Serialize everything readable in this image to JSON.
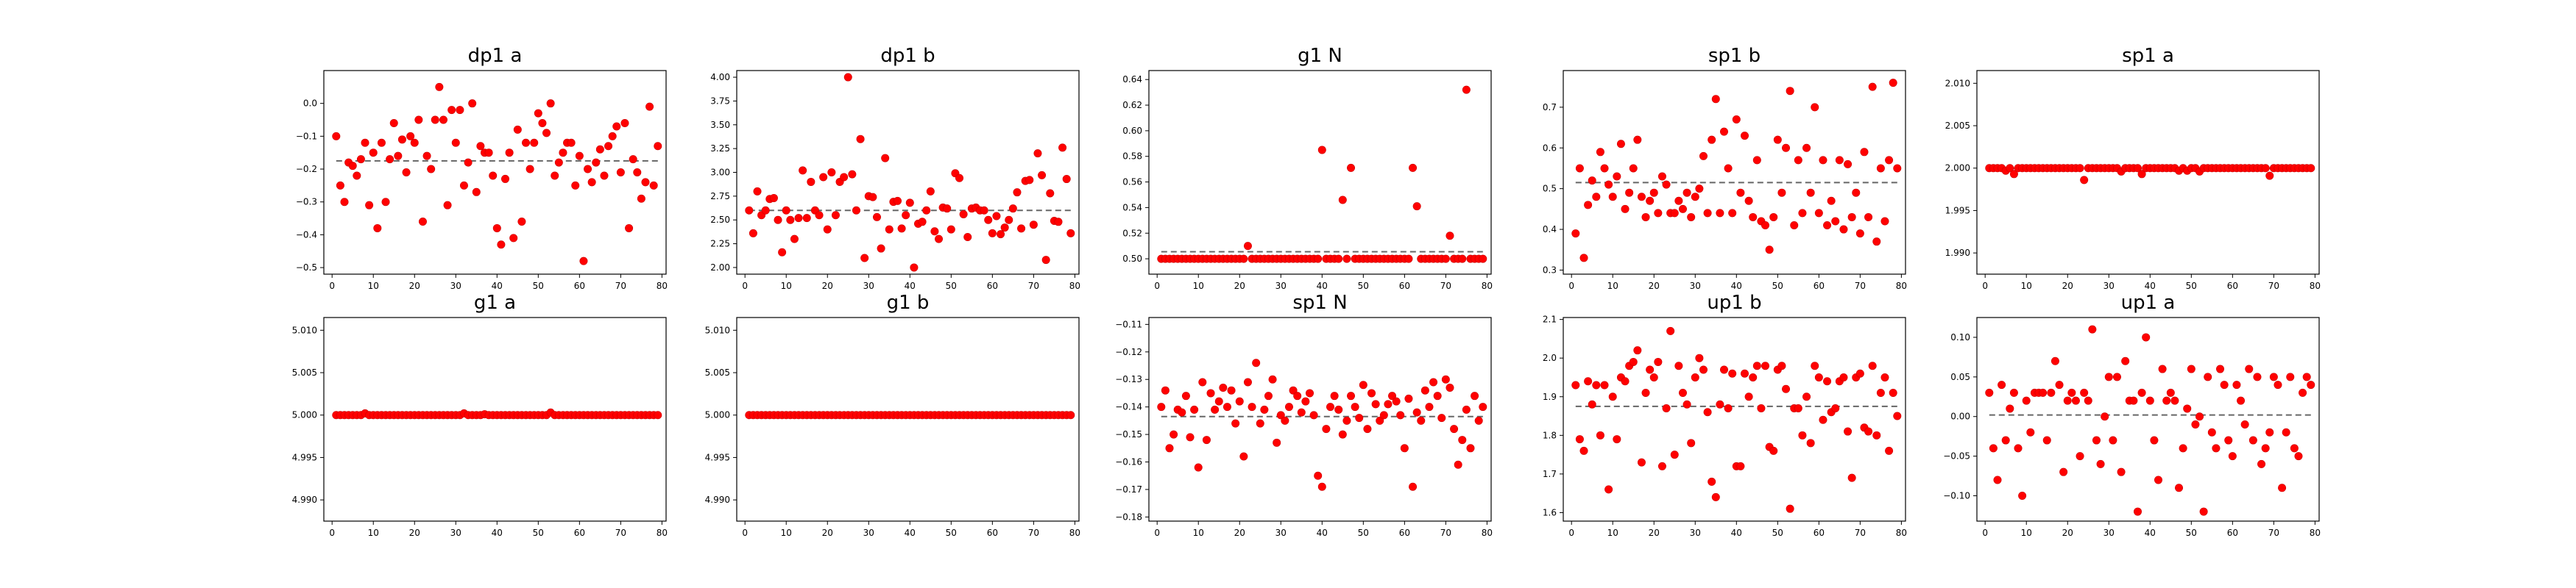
{
  "chart_data": [
    {
      "type": "scatter",
      "title": "dp1 a",
      "ylim": [
        -0.52,
        0.1
      ],
      "yticks": [
        0.0,
        -0.1,
        -0.2,
        -0.3,
        -0.4,
        -0.5
      ],
      "ytick_labels": [
        "0.0",
        "−0.1",
        "−0.2",
        "−0.3",
        "−0.4",
        "−0.5"
      ],
      "mean": -0.175,
      "y": [
        -0.1,
        -0.25,
        -0.3,
        -0.18,
        -0.19,
        -0.22,
        -0.17,
        -0.12,
        -0.31,
        -0.15,
        -0.38,
        -0.12,
        -0.3,
        -0.17,
        -0.06,
        -0.16,
        -0.11,
        -0.21,
        -0.1,
        -0.12,
        -0.05,
        -0.36,
        -0.16,
        -0.2,
        -0.05,
        0.05,
        -0.05,
        -0.31,
        -0.02,
        -0.12,
        -0.02,
        -0.25,
        -0.18,
        0.0,
        -0.27,
        -0.13,
        -0.15,
        -0.15,
        -0.22,
        -0.38,
        -0.43,
        -0.23,
        -0.15,
        -0.41,
        -0.08,
        -0.36,
        -0.12,
        -0.2,
        -0.12,
        -0.03,
        -0.06,
        -0.09,
        0.0,
        -0.22,
        -0.18,
        -0.15,
        -0.12,
        -0.12,
        -0.25,
        -0.16,
        -0.48,
        -0.2,
        -0.24,
        -0.18,
        -0.14,
        -0.22,
        -0.13,
        -0.1,
        -0.07,
        -0.21,
        -0.06,
        -0.38,
        -0.17,
        -0.21,
        -0.29,
        -0.24,
        -0.01,
        -0.25,
        -0.13
      ]
    },
    {
      "type": "scatter",
      "title": "dp1 b",
      "ylim": [
        1.93,
        4.07
      ],
      "yticks": [
        2.0,
        2.25,
        2.5,
        2.75,
        3.0,
        3.25,
        3.5,
        3.75,
        4.0
      ],
      "ytick_labels": [
        "2.00",
        "2.25",
        "2.50",
        "2.75",
        "3.00",
        "3.25",
        "3.50",
        "3.75",
        "4.00"
      ],
      "mean": 2.6,
      "y": [
        2.6,
        2.36,
        2.8,
        2.55,
        2.6,
        2.72,
        2.73,
        2.5,
        2.16,
        2.6,
        2.5,
        2.3,
        2.52,
        3.02,
        2.52,
        2.9,
        2.6,
        2.55,
        2.95,
        2.4,
        3.0,
        2.55,
        2.9,
        2.95,
        4.0,
        2.98,
        2.6,
        3.35,
        2.1,
        2.75,
        2.74,
        2.53,
        2.2,
        3.15,
        2.4,
        2.69,
        2.7,
        2.41,
        2.55,
        2.68,
        2.0,
        2.46,
        2.48,
        2.6,
        2.8,
        2.38,
        2.3,
        2.63,
        2.62,
        2.4,
        2.99,
        2.94,
        2.56,
        2.32,
        2.62,
        2.63,
        2.6,
        2.6,
        2.5,
        2.36,
        2.54,
        2.35,
        2.42,
        2.5,
        2.62,
        2.79,
        2.41,
        2.91,
        2.92,
        2.45,
        3.2,
        2.97,
        2.08,
        2.78,
        2.49,
        2.48,
        3.26,
        2.93,
        2.36
      ]
    },
    {
      "type": "scatter",
      "title": "g1 N",
      "ylim": [
        0.488,
        0.647
      ],
      "yticks": [
        0.5,
        0.52,
        0.54,
        0.56,
        0.58,
        0.6,
        0.62,
        0.64
      ],
      "ytick_labels": [
        "0.50",
        "0.52",
        "0.54",
        "0.56",
        "0.58",
        "0.60",
        "0.62",
        "0.64"
      ],
      "mean": 0.5055,
      "y": [
        0.5,
        0.5,
        0.5,
        0.5,
        0.5,
        0.5,
        0.5,
        0.5,
        0.5,
        0.5,
        0.5,
        0.5,
        0.5,
        0.5,
        0.5,
        0.5,
        0.5,
        0.5,
        0.5,
        0.5,
        0.5,
        0.51,
        0.5,
        0.5,
        0.5,
        0.5,
        0.5,
        0.5,
        0.5,
        0.5,
        0.5,
        0.5,
        0.5,
        0.5,
        0.5,
        0.5,
        0.5,
        0.5,
        0.5,
        0.585,
        0.5,
        0.5,
        0.5,
        0.5,
        0.546,
        0.5,
        0.571,
        0.5,
        0.5,
        0.5,
        0.5,
        0.5,
        0.5,
        0.5,
        0.5,
        0.5,
        0.5,
        0.5,
        0.5,
        0.5,
        0.5,
        0.571,
        0.541,
        0.5,
        0.5,
        0.5,
        0.5,
        0.5,
        0.5,
        0.5,
        0.518,
        0.5,
        0.5,
        0.5,
        0.632,
        0.5,
        0.5,
        0.5,
        0.5
      ]
    },
    {
      "type": "scatter",
      "title": "sp1 b",
      "ylim": [
        0.29,
        0.79
      ],
      "yticks": [
        0.3,
        0.4,
        0.5,
        0.6,
        0.7
      ],
      "ytick_labels": [
        "0.3",
        "0.4",
        "0.5",
        "0.6",
        "0.7"
      ],
      "mean": 0.515,
      "y": [
        0.39,
        0.55,
        0.33,
        0.46,
        0.52,
        0.48,
        0.59,
        0.55,
        0.51,
        0.48,
        0.53,
        0.61,
        0.45,
        0.49,
        0.55,
        0.62,
        0.48,
        0.43,
        0.47,
        0.49,
        0.44,
        0.53,
        0.51,
        0.44,
        0.44,
        0.47,
        0.45,
        0.49,
        0.43,
        0.48,
        0.5,
        0.58,
        0.44,
        0.62,
        0.72,
        0.44,
        0.64,
        0.55,
        0.44,
        0.67,
        0.49,
        0.63,
        0.47,
        0.43,
        0.57,
        0.42,
        0.41,
        0.35,
        0.43,
        0.62,
        0.49,
        0.6,
        0.74,
        0.41,
        0.57,
        0.44,
        0.6,
        0.49,
        0.7,
        0.44,
        0.57,
        0.41,
        0.47,
        0.42,
        0.57,
        0.4,
        0.56,
        0.43,
        0.49,
        0.39,
        0.59,
        0.43,
        0.75,
        0.37,
        0.55,
        0.42,
        0.57,
        0.76,
        0.55
      ]
    },
    {
      "type": "scatter",
      "title": "sp1 a",
      "ylim": [
        1.9875,
        2.0115
      ],
      "yticks": [
        1.99,
        1.995,
        2.0,
        2.005,
        2.01
      ],
      "ytick_labels": [
        "1.990",
        "1.995",
        "2.000",
        "2.005",
        "2.010"
      ],
      "mean": 2.0,
      "y": [
        2.0,
        2.0,
        2.0,
        2.0,
        1.9997,
        2.0,
        1.9993,
        2.0,
        2.0,
        2.0,
        2.0,
        2.0,
        2.0,
        2.0,
        2.0,
        2.0,
        2.0,
        2.0,
        2.0,
        2.0,
        2.0,
        2.0,
        2.0,
        1.9986,
        2.0,
        2.0,
        2.0,
        2.0,
        2.0,
        2.0,
        2.0,
        2.0,
        1.9996,
        2.0,
        2.0,
        2.0,
        2.0,
        1.9993,
        2.0,
        2.0,
        2.0,
        2.0,
        2.0,
        2.0,
        2.0,
        2.0,
        1.9997,
        2.0,
        1.9997,
        2.0,
        2.0,
        1.9996,
        2.0,
        2.0,
        2.0,
        2.0,
        2.0,
        2.0,
        2.0,
        2.0,
        2.0,
        2.0,
        2.0,
        2.0,
        2.0,
        2.0,
        2.0,
        2.0,
        1.9991,
        2.0,
        2.0,
        2.0,
        2.0,
        2.0,
        2.0,
        2.0,
        2.0,
        2.0,
        2.0
      ]
    },
    {
      "type": "scatter",
      "title": "g1 a",
      "ylim": [
        4.9875,
        5.0115
      ],
      "yticks": [
        4.99,
        4.995,
        5.0,
        5.005,
        5.01
      ],
      "ytick_labels": [
        "4.990",
        "4.995",
        "5.000",
        "5.005",
        "5.010"
      ],
      "mean": 5.0,
      "y": [
        5.0,
        5.0,
        5.0,
        5.0,
        5.0,
        5.0,
        5.0,
        5.0002,
        5.0,
        5.0,
        5.0,
        5.0,
        5.0,
        5.0,
        5.0,
        5.0,
        5.0,
        5.0,
        5.0,
        5.0,
        5.0,
        5.0,
        5.0,
        5.0,
        5.0,
        5.0,
        5.0,
        5.0,
        5.0,
        5.0,
        5.0,
        5.0002,
        5.0,
        5.0,
        5.0,
        5.0,
        5.0001,
        5.0,
        5.0,
        5.0,
        5.0,
        5.0,
        5.0,
        5.0,
        5.0,
        5.0,
        5.0,
        5.0,
        5.0,
        5.0,
        5.0,
        5.0,
        5.0003,
        5.0,
        5.0,
        5.0,
        5.0,
        5.0,
        5.0,
        5.0,
        5.0,
        5.0,
        5.0,
        5.0,
        5.0,
        5.0,
        5.0,
        5.0,
        5.0,
        5.0,
        5.0,
        5.0,
        5.0,
        5.0,
        5.0,
        5.0,
        5.0,
        5.0,
        5.0
      ]
    },
    {
      "type": "scatter",
      "title": "g1 b",
      "ylim": [
        4.9875,
        5.0115
      ],
      "yticks": [
        4.99,
        4.995,
        5.0,
        5.005,
        5.01
      ],
      "ytick_labels": [
        "4.990",
        "4.995",
        "5.000",
        "5.005",
        "5.010"
      ],
      "mean": 5.0,
      "y": [
        5.0,
        5.0,
        5.0,
        5.0,
        5.0,
        5.0,
        5.0,
        5.0,
        5.0,
        5.0,
        5.0,
        5.0,
        5.0,
        5.0,
        5.0,
        5.0,
        5.0,
        5.0,
        5.0,
        5.0,
        5.0,
        5.0,
        5.0,
        5.0,
        5.0,
        5.0,
        5.0,
        5.0,
        5.0,
        5.0,
        5.0,
        5.0,
        5.0,
        5.0,
        5.0,
        5.0,
        5.0,
        5.0,
        5.0,
        5.0,
        5.0,
        5.0,
        5.0,
        5.0,
        5.0,
        5.0,
        5.0,
        5.0,
        5.0,
        5.0,
        5.0,
        5.0,
        5.0,
        5.0,
        5.0,
        5.0,
        5.0,
        5.0,
        5.0,
        5.0,
        5.0,
        5.0,
        5.0,
        5.0,
        5.0,
        5.0,
        5.0,
        5.0,
        5.0,
        5.0,
        5.0,
        5.0,
        5.0,
        5.0,
        5.0,
        5.0,
        5.0,
        5.0,
        5.0
      ]
    },
    {
      "type": "scatter",
      "title": "sp1 N",
      "ylim": [
        -0.1815,
        -0.1075
      ],
      "yticks": [
        -0.11,
        -0.12,
        -0.13,
        -0.14,
        -0.15,
        -0.16,
        -0.17,
        -0.18
      ],
      "ytick_labels": [
        "−0.11",
        "−0.12",
        "−0.13",
        "−0.14",
        "−0.15",
        "−0.16",
        "−0.17",
        "−0.18"
      ],
      "mean": -0.1435,
      "y": [
        -0.14,
        -0.134,
        -0.155,
        -0.15,
        -0.141,
        -0.142,
        -0.136,
        -0.151,
        -0.141,
        -0.162,
        -0.131,
        -0.152,
        -0.135,
        -0.141,
        -0.138,
        -0.133,
        -0.14,
        -0.134,
        -0.146,
        -0.138,
        -0.158,
        -0.131,
        -0.14,
        -0.124,
        -0.146,
        -0.141,
        -0.136,
        -0.13,
        -0.153,
        -0.143,
        -0.145,
        -0.14,
        -0.134,
        -0.136,
        -0.142,
        -0.138,
        -0.135,
        -0.143,
        -0.165,
        -0.169,
        -0.148,
        -0.14,
        -0.136,
        -0.141,
        -0.15,
        -0.145,
        -0.136,
        -0.14,
        -0.144,
        -0.132,
        -0.148,
        -0.135,
        -0.139,
        -0.145,
        -0.143,
        -0.139,
        -0.136,
        -0.138,
        -0.143,
        -0.155,
        -0.137,
        -0.169,
        -0.142,
        -0.145,
        -0.134,
        -0.14,
        -0.131,
        -0.136,
        -0.144,
        -0.13,
        -0.133,
        -0.148,
        -0.161,
        -0.152,
        -0.141,
        -0.155,
        -0.136,
        -0.145,
        -0.14
      ]
    },
    {
      "type": "scatter",
      "title": "up1 b",
      "ylim": [
        1.578,
        2.105
      ],
      "yticks": [
        1.6,
        1.7,
        1.8,
        1.9,
        2.0,
        2.1
      ],
      "ytick_labels": [
        "1.6",
        "1.7",
        "1.8",
        "1.9",
        "2.0",
        "2.1"
      ],
      "mean": 1.875,
      "y": [
        1.93,
        1.79,
        1.76,
        1.94,
        1.88,
        1.93,
        1.8,
        1.93,
        1.66,
        1.9,
        1.79,
        1.95,
        1.94,
        1.98,
        1.99,
        2.02,
        1.73,
        1.91,
        1.97,
        1.95,
        1.99,
        1.72,
        1.87,
        2.07,
        1.75,
        1.98,
        1.91,
        1.88,
        1.78,
        1.95,
        2.0,
        1.97,
        1.86,
        1.68,
        1.64,
        1.88,
        1.97,
        1.87,
        1.96,
        1.72,
        1.72,
        1.96,
        1.9,
        1.95,
        1.98,
        1.87,
        1.98,
        1.77,
        1.76,
        1.97,
        1.98,
        1.92,
        1.61,
        1.87,
        1.87,
        1.8,
        1.9,
        1.78,
        1.98,
        1.95,
        1.84,
        1.94,
        1.86,
        1.87,
        1.94,
        1.95,
        1.81,
        1.69,
        1.95,
        1.96,
        1.82,
        1.81,
        1.98,
        1.8,
        1.91,
        1.95,
        1.76,
        1.91,
        1.85
      ]
    },
    {
      "type": "scatter",
      "title": "up1 a",
      "ylim": [
        -0.132,
        0.125
      ],
      "yticks": [
        0.1,
        0.05,
        0.0,
        -0.05,
        -0.1
      ],
      "ytick_labels": [
        "0.10",
        "0.05",
        "0.00",
        "−0.05",
        "−0.10"
      ],
      "mean": 0.002,
      "y": [
        0.03,
        -0.04,
        -0.08,
        0.04,
        -0.03,
        0.01,
        0.03,
        -0.04,
        -0.1,
        0.02,
        -0.02,
        0.03,
        0.03,
        0.03,
        -0.03,
        0.03,
        0.07,
        0.04,
        -0.07,
        0.02,
        0.03,
        0.02,
        -0.05,
        0.03,
        0.02,
        0.11,
        -0.03,
        -0.06,
        0.0,
        0.05,
        -0.03,
        0.05,
        -0.07,
        0.07,
        0.02,
        0.02,
        -0.12,
        0.03,
        0.1,
        0.02,
        -0.03,
        -0.08,
        0.06,
        0.02,
        0.03,
        0.02,
        -0.09,
        -0.04,
        0.01,
        0.06,
        -0.01,
        0.0,
        -0.12,
        0.05,
        -0.02,
        -0.04,
        0.06,
        0.04,
        -0.03,
        -0.05,
        0.04,
        0.02,
        -0.01,
        0.06,
        -0.03,
        0.05,
        -0.06,
        -0.04,
        -0.02,
        0.05,
        0.04,
        -0.09,
        -0.02,
        0.05,
        -0.04,
        -0.05,
        0.03,
        0.05,
        0.04
      ]
    }
  ],
  "x_axis": {
    "xlim": [
      -2,
      81
    ],
    "xticks": [
      0,
      10,
      20,
      30,
      40,
      50,
      60,
      70,
      80
    ],
    "xtick_labels": [
      "0",
      "10",
      "20",
      "30",
      "40",
      "50",
      "60",
      "70",
      "80"
    ],
    "x_start": 1
  }
}
